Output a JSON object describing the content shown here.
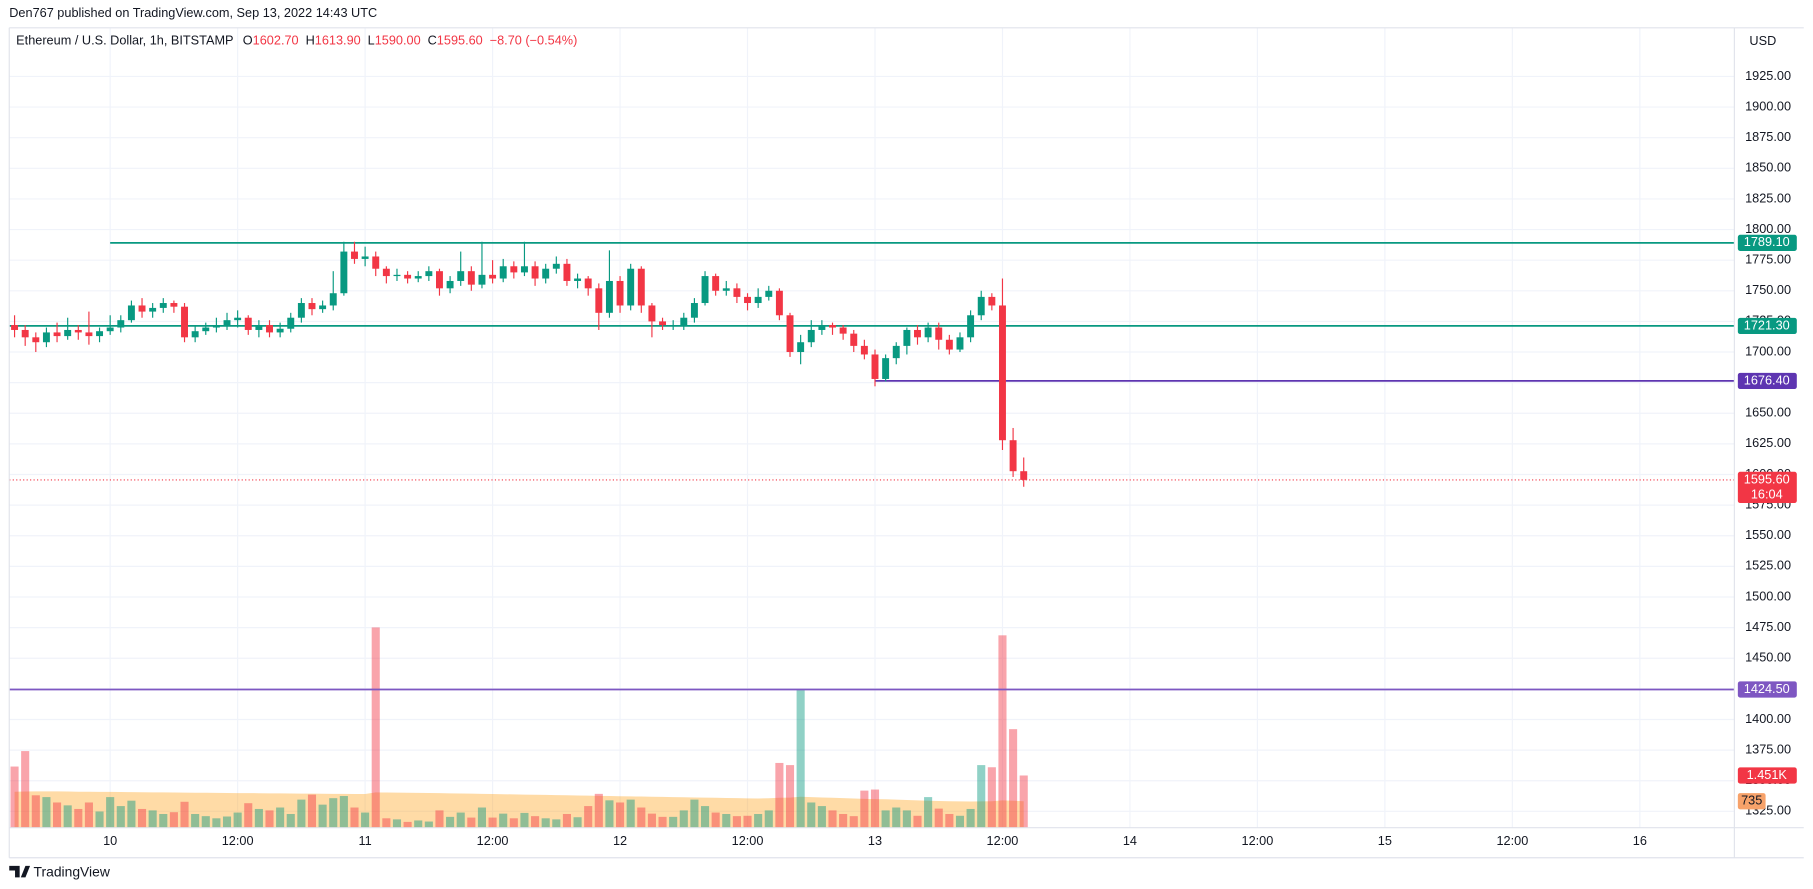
{
  "header": "Den767 published on TradingView.com, Sep 13, 2022 14:43 UTC",
  "footer": "TradingView",
  "chart_data": {
    "type": "candlestick",
    "legend": {
      "symbol": "Ethereum / U.S. Dollar, 1h, BITSTAMP",
      "items": [
        {
          "key": "O",
          "value": "1602.70"
        },
        {
          "key": "H",
          "value": "1613.90"
        },
        {
          "key": "L",
          "value": "1590.00"
        },
        {
          "key": "C",
          "value": "1595.60"
        }
      ],
      "change": "−8.70 (−0.54%)"
    },
    "currency": "USD",
    "up_color": "#089981",
    "down_color": "#f23645",
    "volume_up_color": "rgba(8,153,129,0.45)",
    "volume_down_color": "rgba(242,54,69,0.45)",
    "volume_ma_color": "rgba(255,152,0,0.35)",
    "volume_ma_label_color": "#f7a26a",
    "grid": true,
    "xlim": [
      -9.5,
      152.9
    ],
    "xticks": [
      {
        "value": 0,
        "label": "10"
      },
      {
        "value": 12,
        "label": "12:00"
      },
      {
        "value": 24,
        "label": "11"
      },
      {
        "value": 36,
        "label": "12:00"
      },
      {
        "value": 48,
        "label": "12"
      },
      {
        "value": 60,
        "label": "12:00"
      },
      {
        "value": 72,
        "label": "13"
      },
      {
        "value": 84,
        "label": "12:00"
      },
      {
        "value": 96,
        "label": "14"
      },
      {
        "value": 108,
        "label": "12:00"
      },
      {
        "value": 120,
        "label": "15"
      },
      {
        "value": 132,
        "label": "12:00"
      },
      {
        "value": 144,
        "label": "16"
      }
    ],
    "ylim": [
      1311.7,
      1964.7
    ],
    "yticks": [
      {
        "value": 1325,
        "label": "1325.00"
      },
      {
        "value": 1350,
        "label": "1350.00"
      },
      {
        "value": 1375,
        "label": "1375.00"
      },
      {
        "value": 1400,
        "label": "1400.00"
      },
      {
        "value": 1425,
        "label": "1425.00"
      },
      {
        "value": 1450,
        "label": "1450.00"
      },
      {
        "value": 1475,
        "label": "1475.00"
      },
      {
        "value": 1500,
        "label": "1500.00"
      },
      {
        "value": 1525,
        "label": "1525.00"
      },
      {
        "value": 1550,
        "label": "1550.00"
      },
      {
        "value": 1575,
        "label": "1575.00"
      },
      {
        "value": 1600,
        "label": "1600.00"
      },
      {
        "value": 1625,
        "label": "1625.00"
      },
      {
        "value": 1650,
        "label": "1650.00"
      },
      {
        "value": 1675,
        "label": "1675.00"
      },
      {
        "value": 1700,
        "label": "1700.00"
      },
      {
        "value": 1725,
        "label": "1725.00"
      },
      {
        "value": 1750,
        "label": "1750.00"
      },
      {
        "value": 1775,
        "label": "1775.00"
      },
      {
        "value": 1800,
        "label": "1800.00"
      },
      {
        "value": 1825,
        "label": "1825.00"
      },
      {
        "value": 1850,
        "label": "1850.00"
      },
      {
        "value": 1875,
        "label": "1875.00"
      },
      {
        "value": 1900,
        "label": "1900.00"
      },
      {
        "value": 1925,
        "label": "1925.00"
      }
    ],
    "x": [
      -9,
      -8,
      -7,
      -6,
      -5,
      -4,
      -3,
      -2,
      -1,
      0,
      1,
      2,
      3,
      4,
      5,
      6,
      7,
      8,
      9,
      10,
      11,
      12,
      13,
      14,
      15,
      16,
      17,
      18,
      19,
      20,
      21,
      22,
      23,
      24,
      25,
      26,
      27,
      28,
      29,
      30,
      31,
      32,
      33,
      34,
      35,
      36,
      37,
      38,
      39,
      40,
      41,
      42,
      43,
      44,
      45,
      46,
      47,
      48,
      49,
      50,
      51,
      52,
      53,
      54,
      55,
      56,
      57,
      58,
      59,
      60,
      61,
      62,
      63,
      64,
      65,
      66,
      67,
      68,
      69,
      70,
      71,
      72,
      73,
      74,
      75,
      76,
      77,
      78,
      79,
      80,
      81,
      82,
      83,
      84,
      85,
      86
    ],
    "open": [
      1722,
      1718,
      1712,
      1708,
      1716,
      1713,
      1718,
      1716,
      1713,
      1717,
      1720,
      1726,
      1738,
      1733,
      1736,
      1740,
      1737,
      1712,
      1717,
      1720,
      1722,
      1726,
      1728,
      1718,
      1722,
      1716,
      1719,
      1728,
      1740,
      1735,
      1738,
      1748,
      1782,
      1776,
      1778,
      1768,
      1762,
      1763,
      1760,
      1762,
      1766,
      1752,
      1758,
      1766,
      1755,
      1763,
      1760,
      1770,
      1765,
      1770,
      1760,
      1768,
      1772,
      1758,
      1760,
      1752,
      1732,
      1758,
      1738,
      1768,
      1738,
      1725,
      1722,
      1722,
      1728,
      1740,
      1762,
      1750,
      1752,
      1745,
      1740,
      1745,
      1750,
      1730,
      1700,
      1708,
      1718,
      1722,
      1720,
      1715,
      1705,
      1698,
      1678,
      1695,
      1705,
      1718,
      1712,
      1720,
      1710,
      1702,
      1712,
      1730,
      1745,
      1738,
      1628,
      1602.7
    ],
    "high": [
      1730,
      1722,
      1716,
      1720,
      1724,
      1728,
      1722,
      1733,
      1720,
      1730,
      1730,
      1742,
      1744,
      1740,
      1744,
      1742,
      1740,
      1722,
      1724,
      1728,
      1732,
      1734,
      1730,
      1726,
      1726,
      1724,
      1732,
      1744,
      1744,
      1742,
      1766,
      1790,
      1790,
      1786,
      1782,
      1770,
      1768,
      1766,
      1766,
      1770,
      1768,
      1762,
      1782,
      1770,
      1790,
      1775,
      1776,
      1774,
      1790,
      1774,
      1772,
      1778,
      1776,
      1764,
      1762,
      1756,
      1783,
      1762,
      1772,
      1770,
      1740,
      1728,
      1726,
      1732,
      1744,
      1766,
      1764,
      1758,
      1756,
      1748,
      1752,
      1754,
      1752,
      1732,
      1714,
      1726,
      1726,
      1724,
      1722,
      1718,
      1710,
      1702,
      1698,
      1708,
      1720,
      1722,
      1724,
      1724,
      1714,
      1716,
      1734,
      1750,
      1748,
      1760,
      1638,
      1613.9
    ],
    "low": [
      1712,
      1705,
      1700,
      1704,
      1708,
      1710,
      1710,
      1706,
      1708,
      1714,
      1716,
      1724,
      1728,
      1728,
      1732,
      1732,
      1708,
      1708,
      1714,
      1716,
      1718,
      1720,
      1714,
      1712,
      1712,
      1712,
      1716,
      1724,
      1730,
      1732,
      1734,
      1746,
      1772,
      1770,
      1762,
      1756,
      1758,
      1756,
      1757,
      1758,
      1746,
      1748,
      1754,
      1750,
      1752,
      1756,
      1757,
      1760,
      1762,
      1754,
      1756,
      1764,
      1754,
      1752,
      1746,
      1718,
      1728,
      1732,
      1734,
      1732,
      1712,
      1718,
      1718,
      1718,
      1724,
      1738,
      1746,
      1746,
      1740,
      1734,
      1736,
      1742,
      1726,
      1696,
      1690,
      1704,
      1714,
      1714,
      1710,
      1700,
      1694,
      1672,
      1676,
      1690,
      1698,
      1706,
      1708,
      1702,
      1698,
      1700,
      1708,
      1726,
      1734,
      1620,
      1598,
      1590
    ],
    "close": [
      1718,
      1712,
      1708,
      1716,
      1713,
      1718,
      1716,
      1713,
      1717,
      1720,
      1726,
      1738,
      1733,
      1736,
      1740,
      1737,
      1712,
      1717,
      1720,
      1722,
      1726,
      1728,
      1718,
      1722,
      1716,
      1719,
      1728,
      1740,
      1735,
      1738,
      1748,
      1782,
      1776,
      1778,
      1768,
      1762,
      1763,
      1760,
      1762,
      1766,
      1752,
      1758,
      1766,
      1755,
      1763,
      1760,
      1770,
      1765,
      1770,
      1760,
      1768,
      1772,
      1758,
      1760,
      1752,
      1732,
      1758,
      1738,
      1768,
      1738,
      1725,
      1722,
      1722,
      1728,
      1740,
      1762,
      1750,
      1752,
      1745,
      1740,
      1745,
      1750,
      1730,
      1700,
      1708,
      1718,
      1722,
      1720,
      1715,
      1705,
      1698,
      1678,
      1695,
      1705,
      1718,
      1712,
      1720,
      1710,
      1702,
      1712,
      1730,
      1745,
      1738,
      1628,
      1602.7,
      1595.6
    ],
    "volume": [
      1700,
      2130,
      900,
      850,
      700,
      620,
      520,
      700,
      450,
      850,
      600,
      750,
      520,
      480,
      380,
      430,
      720,
      380,
      320,
      260,
      310,
      420,
      680,
      520,
      480,
      560,
      380,
      780,
      920,
      640,
      820,
      880,
      560,
      420,
      5570,
      260,
      230,
      160,
      200,
      170,
      480,
      300,
      420,
      280,
      560,
      280,
      390,
      260,
      410,
      320,
      260,
      230,
      380,
      290,
      600,
      940,
      760,
      700,
      780,
      560,
      390,
      300,
      300,
      480,
      780,
      600,
      420,
      380,
      320,
      330,
      380,
      480,
      1800,
      1740,
      3830,
      700,
      600,
      480,
      380,
      320,
      1030,
      1060,
      480,
      560,
      480,
      330,
      850,
      530,
      380,
      330,
      520,
      1740,
      1680,
      5350,
      2740,
      1451
    ],
    "volume_last_label": "1.451K",
    "volume_ma": [
      1000,
      1005,
      1010,
      1010,
      1008,
      1005,
      1000,
      998,
      996,
      994,
      990,
      988,
      985,
      982,
      980,
      978,
      975,
      972,
      970,
      968,
      965,
      962,
      960,
      958,
      955,
      952,
      950,
      948,
      945,
      942,
      940,
      938,
      936,
      935,
      980,
      978,
      975,
      972,
      968,
      965,
      960,
      955,
      950,
      945,
      940,
      935,
      930,
      925,
      920,
      915,
      910,
      905,
      900,
      895,
      890,
      885,
      880,
      875,
      870,
      865,
      860,
      855,
      850,
      845,
      840,
      835,
      830,
      825,
      820,
      815,
      812,
      818,
      830,
      835,
      860,
      850,
      840,
      830,
      820,
      810,
      800,
      795,
      790,
      780,
      770,
      760,
      750,
      742,
      736,
      730,
      728,
      730,
      735,
      760,
      750,
      735
    ],
    "levels": [
      {
        "price": 1789.1,
        "label": "1789.10",
        "x_start": 0,
        "color": "#089981"
      },
      {
        "price": 1721.3,
        "label": "1721.30",
        "x_start": -9.5,
        "color": "#089981"
      },
      {
        "price": 1676.4,
        "label": "1676.40",
        "x_start": 72,
        "color": "#5e35b1"
      },
      {
        "price": 1424.5,
        "label": "1424.50",
        "x_start": -9.5,
        "color": "#7e57c2"
      }
    ],
    "last_price": {
      "value": 1595.6,
      "label": "1595.60",
      "countdown": "16:04"
    }
  }
}
